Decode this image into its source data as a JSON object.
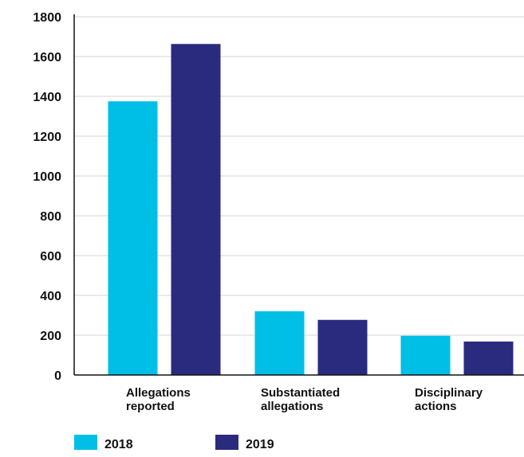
{
  "chart_data": {
    "type": "bar",
    "title": "",
    "xlabel": "",
    "ylabel": "",
    "categories": [
      [
        "Allegations",
        "reported"
      ],
      [
        "Substantiated",
        "allegations"
      ],
      [
        "Disciplinary",
        "actions"
      ]
    ],
    "series": [
      {
        "name": "2018",
        "color": "#00bfe6",
        "values": [
          1375,
          320,
          197
        ]
      },
      {
        "name": "2019",
        "color": "#2a2a7e",
        "values": [
          1663,
          277,
          168
        ]
      }
    ],
    "ylim": [
      0,
      1800
    ],
    "yticks": [
      0,
      200,
      400,
      600,
      800,
      1000,
      1200,
      1400,
      1600,
      1800
    ],
    "grid": true,
    "legend_position": "bottom-left"
  }
}
